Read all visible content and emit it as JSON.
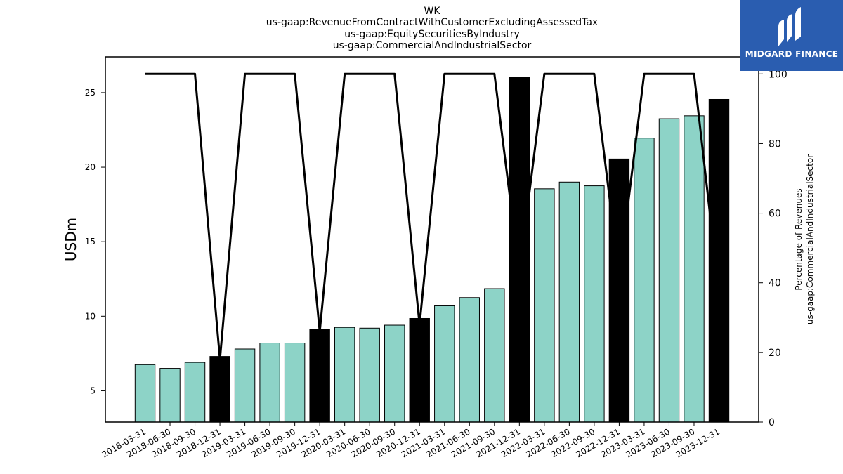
{
  "chart_data": {
    "type": "bar",
    "title_lines": [
      "WK",
      "us-gaap:RevenueFromContractWithCustomerExcludingAssessedTax",
      "us-gaap:EquitySecuritiesByIndustry",
      "us-gaap:CommercialAndIndustrialSector"
    ],
    "ylabel": "USDm",
    "ylabel_right": [
      "Percentage of Revenues",
      "us-gaap:CommercialAndIndustrialSector"
    ],
    "categories": [
      "2018-03-31",
      "2018-06-30",
      "2018-09-30",
      "2018-12-31",
      "2019-03-31",
      "2019-06-30",
      "2019-09-30",
      "2019-12-31",
      "2020-03-31",
      "2020-06-30",
      "2020-09-30",
      "2020-12-31",
      "2021-03-31",
      "2021-06-30",
      "2021-09-30",
      "2021-12-31",
      "2022-03-31",
      "2022-06-30",
      "2022-09-30",
      "2022-12-31",
      "2023-03-31",
      "2023-06-30",
      "2023-09-30",
      "2023-12-31"
    ],
    "values": [
      6.75,
      6.5,
      6.9,
      7.3,
      7.8,
      8.2,
      8.2,
      9.1,
      9.25,
      9.2,
      9.4,
      9.85,
      10.7,
      11.25,
      11.85,
      26.05,
      18.55,
      19.0,
      18.75,
      20.55,
      21.95,
      23.25,
      23.45,
      24.55
    ],
    "highlight": [
      false,
      false,
      false,
      true,
      false,
      false,
      false,
      true,
      false,
      false,
      false,
      true,
      false,
      false,
      false,
      true,
      false,
      false,
      false,
      true,
      false,
      false,
      false,
      true
    ],
    "line_values": [
      100,
      100,
      100,
      18,
      100,
      100,
      100,
      26,
      100,
      100,
      100,
      28,
      100,
      100,
      100,
      43,
      100,
      100,
      100,
      42,
      100,
      100,
      100,
      37
    ],
    "ylim": [
      2.9,
      27.4
    ],
    "yticks": [
      5,
      10,
      15,
      20,
      25
    ],
    "y2lim": [
      0,
      104.9
    ],
    "y2ticks": [
      0,
      20,
      40,
      60,
      80,
      100
    ],
    "colors": {
      "bar": "#8dd3c7",
      "highlight": "#000000",
      "line": "#000000",
      "logo_bg": "#2a5db0"
    }
  },
  "logo": {
    "text": "MIDGARD FINANCE"
  }
}
